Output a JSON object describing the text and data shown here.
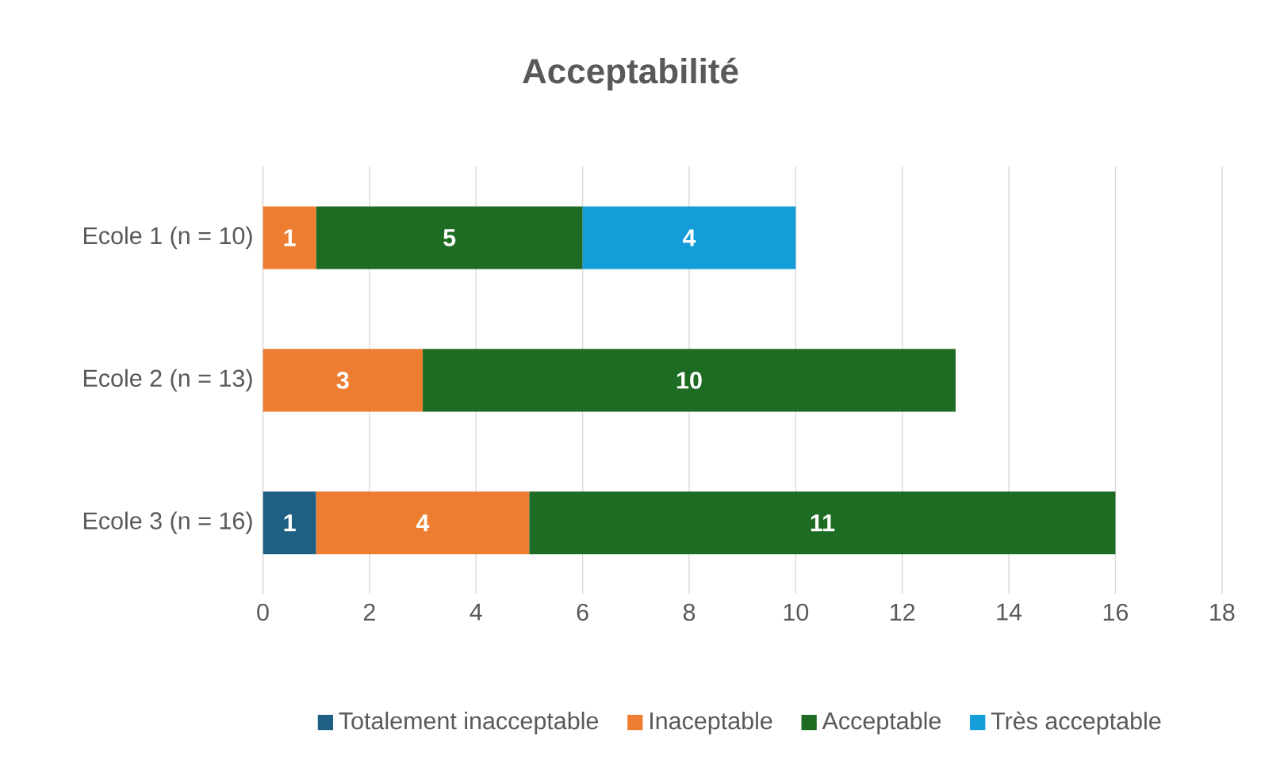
{
  "chart_data": {
    "type": "bar",
    "orientation": "horizontal",
    "stacked": true,
    "title": "Acceptabilité",
    "categories": [
      "Ecole 1 (n = 10)",
      "Ecole 2 (n = 13)",
      "Ecole 3 (n = 16)"
    ],
    "series": [
      {
        "name": "Totalement inacceptable",
        "color": "#1f5f84",
        "values": [
          null,
          null,
          1
        ]
      },
      {
        "name": "Inaceptable",
        "color": "#ed7d31",
        "values": [
          1,
          3,
          4
        ]
      },
      {
        "name": "Acceptable",
        "color": "#1e6b24",
        "values": [
          5,
          10,
          11
        ]
      },
      {
        "name": "Très acceptable",
        "color": "#149dd8",
        "values": [
          4,
          null,
          null
        ]
      }
    ],
    "xlim": [
      0,
      18
    ],
    "xticks": [
      0,
      2,
      4,
      6,
      8,
      10,
      12,
      14,
      16,
      18
    ],
    "grid": "x",
    "legend": "bottom",
    "data_labels": true
  }
}
